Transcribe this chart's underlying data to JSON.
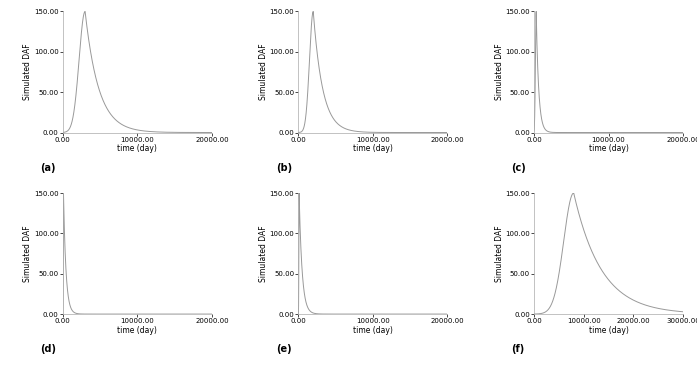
{
  "panels": [
    {
      "label": "(a)",
      "peak_t": 3000,
      "decay_rate": 0.00055,
      "rise_sigma": 800,
      "xlim": [
        0,
        20000
      ],
      "xticks": [
        0,
        10000,
        20000
      ],
      "peak_val": 150,
      "t_start": 0
    },
    {
      "label": "(b)",
      "peak_t": 2000,
      "decay_rate": 0.0008,
      "rise_sigma": 500,
      "xlim": [
        0,
        20000
      ],
      "xticks": [
        0,
        10000,
        20000
      ],
      "peak_val": 150,
      "t_start": 0
    },
    {
      "label": "(c)",
      "peak_t": 300,
      "decay_rate": 0.003,
      "rise_sigma": 100,
      "xlim": [
        0,
        20000
      ],
      "xticks": [
        0,
        10000,
        20000
      ],
      "peak_val": 150,
      "t_start": 0
    },
    {
      "label": "(d)",
      "peak_t": 100,
      "decay_rate": 0.003,
      "rise_sigma": 30,
      "xlim": [
        0,
        20000
      ],
      "xticks": [
        0,
        10000,
        20000
      ],
      "peak_val": 150,
      "t_start": 0
    },
    {
      "label": "(e)",
      "peak_t": 100,
      "decay_rate": 0.0025,
      "rise_sigma": 30,
      "xlim": [
        0,
        20000
      ],
      "xticks": [
        0,
        10000,
        20000
      ],
      "peak_val": 150,
      "t_start": 0
    },
    {
      "label": "(f)",
      "peak_t": 8000,
      "decay_rate": 0.00018,
      "rise_sigma": 2000,
      "xlim": [
        0,
        30000
      ],
      "xticks": [
        0,
        10000,
        20000,
        30000
      ],
      "peak_val": 150,
      "t_start": 0
    }
  ],
  "ylim": [
    0,
    150
  ],
  "yticks": [
    0.0,
    50.0,
    100.0,
    150.0
  ],
  "ylabel": "Simulated DAF",
  "xlabel": "time (day)",
  "line_color": "#999999",
  "line_width": 0.7,
  "tick_fontsize": 5.0,
  "label_fontsize": 5.5,
  "panel_label_fontsize": 7,
  "fig_bg": "#ffffff"
}
